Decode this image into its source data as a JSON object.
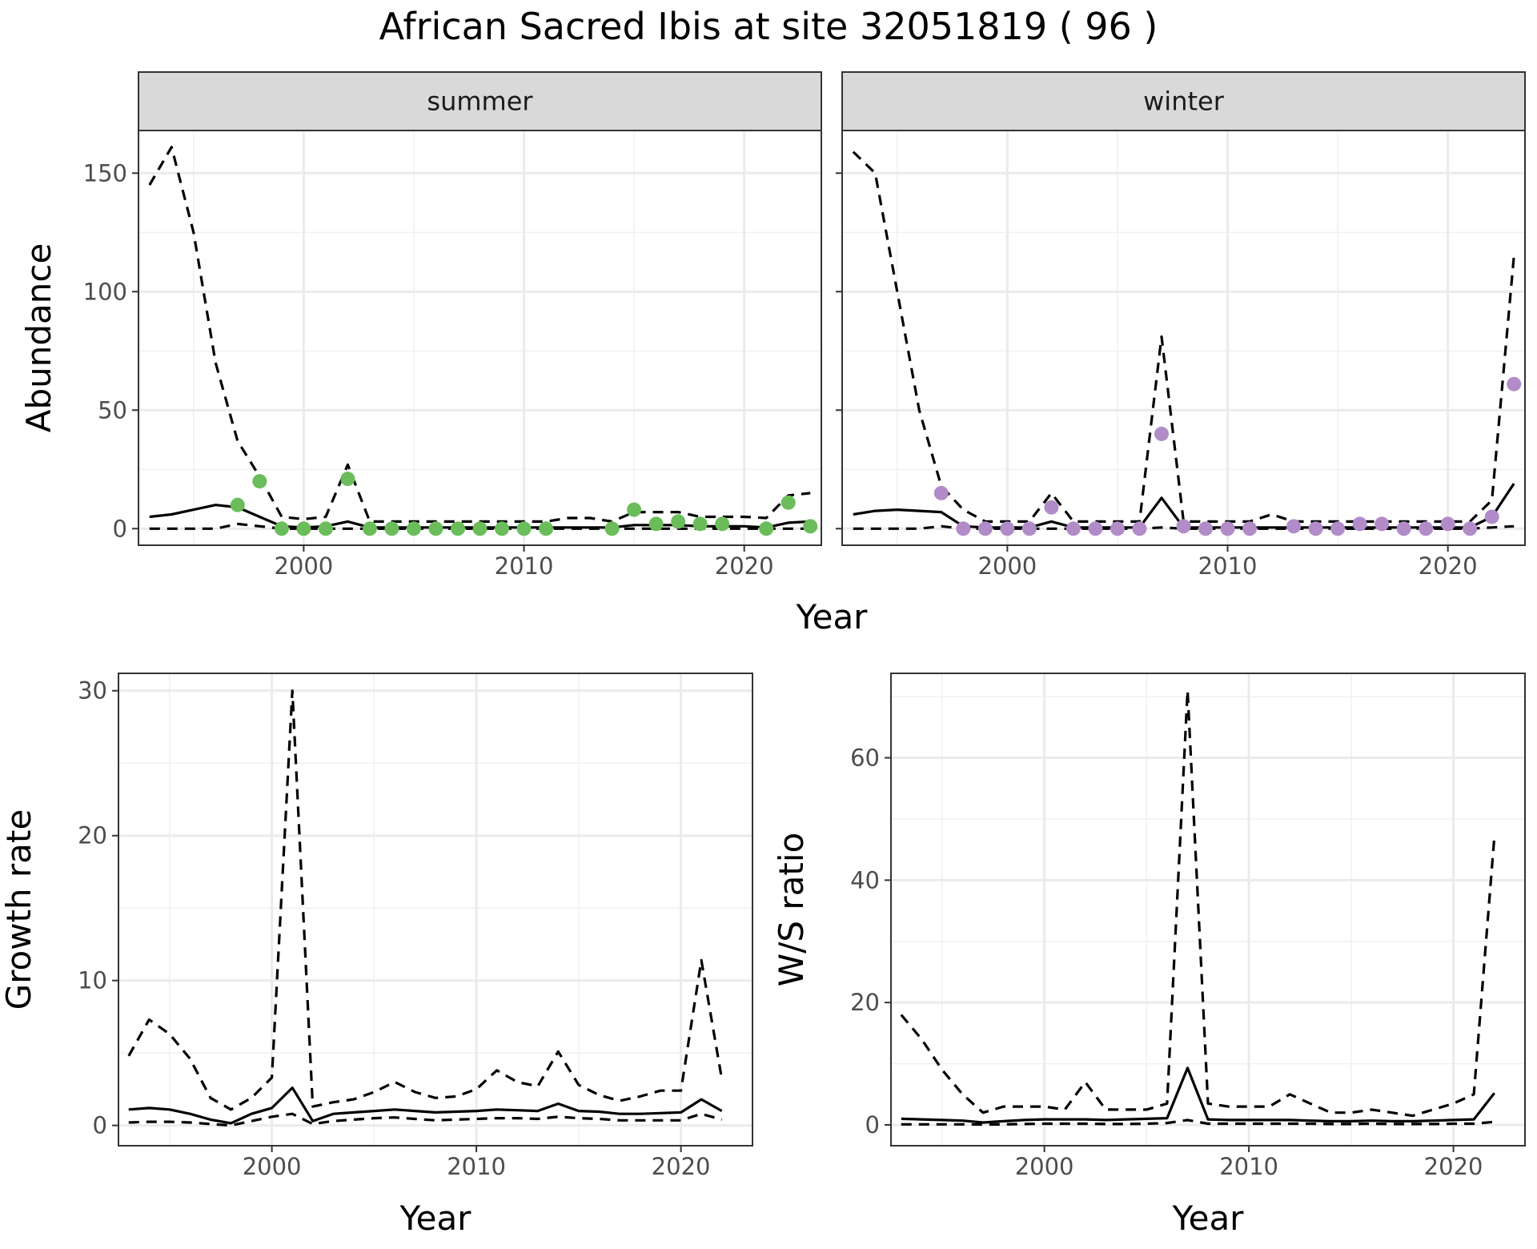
{
  "title": "African Sacred Ibis at site 32051819 ( 96 )",
  "chart_data": [
    {
      "id": "abundance_summer",
      "type": "line",
      "facet": "summer",
      "ylabel": "Abundance",
      "xlabel": "Year",
      "xlim": [
        1992.5,
        2023.5
      ],
      "ylim": [
        -7,
        168
      ],
      "xticks": [
        2000,
        2010,
        2020
      ],
      "yticks": [
        0,
        50,
        100,
        150
      ],
      "point_color": "#6ABD5A",
      "series": [
        {
          "role": "mean",
          "style": "solid",
          "x": [
            1993,
            1994,
            1995,
            1996,
            1997,
            1998,
            1999,
            2000,
            2001,
            2002,
            2003,
            2004,
            2005,
            2006,
            2007,
            2008,
            2009,
            2010,
            2011,
            2012,
            2013,
            2014,
            2015,
            2016,
            2017,
            2018,
            2019,
            2020,
            2021,
            2022,
            2023
          ],
          "values": [
            5,
            6,
            8,
            10,
            9,
            5,
            1,
            0.5,
            1,
            3,
            0.5,
            0.5,
            0.5,
            0.5,
            0.5,
            0.5,
            0.5,
            0.5,
            0.5,
            0.5,
            0.5,
            0.5,
            1.5,
            1.5,
            1.5,
            1,
            1,
            1,
            0.5,
            2.5,
            3
          ]
        },
        {
          "role": "upper",
          "style": "dashed",
          "x": [
            1993,
            1994,
            1995,
            1996,
            1997,
            1998,
            1999,
            2000,
            2001,
            2002,
            2003,
            2004,
            2005,
            2006,
            2007,
            2008,
            2009,
            2010,
            2011,
            2012,
            2013,
            2014,
            2015,
            2016,
            2017,
            2018,
            2019,
            2020,
            2021,
            2022,
            2023
          ],
          "values": [
            145,
            161,
            125,
            70,
            37,
            22,
            5,
            4,
            5,
            27,
            3,
            3,
            3,
            3,
            3,
            3,
            3,
            3,
            3,
            4.5,
            4.5,
            3,
            7,
            7,
            7,
            5,
            5,
            5,
            4.5,
            14,
            15
          ]
        },
        {
          "role": "lower",
          "style": "dashed",
          "x": [
            1993,
            1994,
            1995,
            1996,
            1997,
            1998,
            1999,
            2000,
            2001,
            2002,
            2003,
            2004,
            2005,
            2006,
            2007,
            2008,
            2009,
            2010,
            2011,
            2012,
            2013,
            2014,
            2015,
            2016,
            2017,
            2018,
            2019,
            2020,
            2021,
            2022,
            2023
          ],
          "values": [
            0,
            0,
            0,
            0,
            2,
            1,
            0,
            0,
            0,
            0,
            0,
            0,
            0,
            0,
            0,
            0,
            0,
            0,
            0,
            0,
            0,
            0,
            0,
            0,
            0,
            0,
            0,
            0,
            0,
            0,
            0
          ]
        },
        {
          "role": "observed",
          "style": "points",
          "x": [
            1997,
            1998,
            1999,
            2000,
            2001,
            2002,
            2003,
            2004,
            2005,
            2006,
            2007,
            2008,
            2009,
            2010,
            2011,
            2014,
            2015,
            2016,
            2017,
            2018,
            2019,
            2021,
            2022,
            2023
          ],
          "values": [
            10,
            20,
            0,
            0,
            0,
            21,
            0,
            0,
            0,
            0,
            0,
            0,
            0,
            0,
            0,
            0,
            8,
            2,
            3,
            2,
            2,
            0,
            11,
            1
          ]
        }
      ]
    },
    {
      "id": "abundance_winter",
      "type": "line",
      "facet": "winter",
      "xlabel": "Year",
      "xlim": [
        1992.5,
        2023.5
      ],
      "ylim": [
        -7,
        168
      ],
      "xticks": [
        2000,
        2010,
        2020
      ],
      "yticks": [
        0,
        50,
        100,
        150
      ],
      "point_color": "#B18CC8",
      "series": [
        {
          "role": "mean",
          "style": "solid",
          "x": [
            1993,
            1994,
            1995,
            1996,
            1997,
            1998,
            1999,
            2000,
            2001,
            2002,
            2003,
            2004,
            2005,
            2006,
            2007,
            2008,
            2009,
            2010,
            2011,
            2012,
            2013,
            2014,
            2015,
            2016,
            2017,
            2018,
            2019,
            2020,
            2021,
            2022,
            2023
          ],
          "values": [
            6,
            7.5,
            8,
            7.5,
            7,
            1,
            0.5,
            0.5,
            0.5,
            3,
            0.5,
            0.5,
            0.5,
            0.5,
            13,
            0.5,
            0.5,
            0.5,
            0.5,
            0.5,
            0.5,
            0.5,
            0.5,
            0.5,
            0.5,
            0.5,
            0.5,
            0.5,
            0.5,
            5,
            19
          ]
        },
        {
          "role": "upper",
          "style": "dashed",
          "x": [
            1993,
            1994,
            1995,
            1996,
            1997,
            1998,
            1999,
            2000,
            2001,
            2002,
            2003,
            2004,
            2005,
            2006,
            2007,
            2008,
            2009,
            2010,
            2011,
            2012,
            2013,
            2014,
            2015,
            2016,
            2017,
            2018,
            2019,
            2020,
            2021,
            2022,
            2023
          ],
          "values": [
            159,
            150,
            100,
            50,
            18,
            8,
            3,
            3,
            3,
            15,
            3,
            3,
            3,
            3,
            81,
            3,
            3,
            3,
            3,
            6,
            3,
            3,
            3,
            3,
            3,
            3,
            3,
            3,
            3,
            12,
            115
          ]
        },
        {
          "role": "lower",
          "style": "dashed",
          "x": [
            1993,
            1994,
            1995,
            1996,
            1997,
            1998,
            1999,
            2000,
            2001,
            2002,
            2003,
            2004,
            2005,
            2006,
            2007,
            2008,
            2009,
            2010,
            2011,
            2012,
            2013,
            2014,
            2015,
            2016,
            2017,
            2018,
            2019,
            2020,
            2021,
            2022,
            2023
          ],
          "values": [
            0,
            0,
            0,
            0,
            1,
            0,
            0,
            0,
            0,
            0,
            0,
            0,
            0,
            0,
            0.5,
            0,
            0,
            0,
            0,
            0,
            0,
            0,
            0,
            0,
            0,
            0,
            0,
            0,
            0,
            0.5,
            1
          ]
        },
        {
          "role": "observed",
          "style": "points",
          "x": [
            1997,
            1998,
            1999,
            2000,
            2001,
            2002,
            2003,
            2004,
            2005,
            2006,
            2007,
            2008,
            2009,
            2010,
            2011,
            2013,
            2014,
            2015,
            2016,
            2017,
            2018,
            2019,
            2020,
            2021,
            2022,
            2023
          ],
          "values": [
            15,
            0,
            0,
            0,
            0,
            9,
            0,
            0,
            0,
            0,
            40,
            1,
            0,
            0,
            0,
            1,
            0,
            0,
            2,
            2,
            0,
            0,
            2,
            0,
            5,
            61
          ]
        }
      ]
    },
    {
      "id": "growth_rate",
      "type": "line",
      "xlabel": "Year",
      "ylabel": "Growth rate",
      "xlim": [
        1992.5,
        2023.5
      ],
      "ylim": [
        -1.4,
        31.2
      ],
      "xticks": [
        2000,
        2010,
        2020
      ],
      "yticks": [
        0,
        10,
        20,
        30
      ],
      "series": [
        {
          "role": "mean",
          "style": "solid",
          "x": [
            1993,
            1994,
            1995,
            1996,
            1997,
            1998,
            1999,
            2000,
            2001,
            2002,
            2003,
            2004,
            2005,
            2006,
            2007,
            2008,
            2009,
            2010,
            2011,
            2012,
            2013,
            2014,
            2015,
            2016,
            2017,
            2018,
            2019,
            2020,
            2021,
            2022
          ],
          "values": [
            1.1,
            1.2,
            1.1,
            0.8,
            0.4,
            0.15,
            0.8,
            1.2,
            2.6,
            0.3,
            0.8,
            0.9,
            1.0,
            1.1,
            1.0,
            0.9,
            0.95,
            1.0,
            1.1,
            1.05,
            1.0,
            1.5,
            1.0,
            0.95,
            0.8,
            0.8,
            0.85,
            0.9,
            1.8,
            1.0
          ]
        },
        {
          "role": "upper",
          "style": "dashed",
          "x": [
            1993,
            1994,
            1995,
            1996,
            1997,
            1998,
            1999,
            2000,
            2001,
            2002,
            2003,
            2004,
            2005,
            2006,
            2007,
            2008,
            2009,
            2010,
            2011,
            2012,
            2013,
            2014,
            2015,
            2016,
            2017,
            2018,
            2019,
            2020,
            2021,
            2022
          ],
          "values": [
            4.8,
            7.3,
            6.3,
            4.6,
            1.9,
            1.1,
            1.9,
            3.3,
            30,
            1.3,
            1.6,
            1.8,
            2.3,
            3.0,
            2.3,
            1.9,
            2.0,
            2.5,
            3.8,
            3.0,
            2.7,
            5.1,
            2.8,
            2.1,
            1.7,
            2.0,
            2.4,
            2.4,
            11.4,
            3.2
          ]
        },
        {
          "role": "lower",
          "style": "dashed",
          "x": [
            1993,
            1994,
            1995,
            1996,
            1997,
            1998,
            1999,
            2000,
            2001,
            2002,
            2003,
            2004,
            2005,
            2006,
            2007,
            2008,
            2009,
            2010,
            2011,
            2012,
            2013,
            2014,
            2015,
            2016,
            2017,
            2018,
            2019,
            2020,
            2021,
            2022
          ],
          "values": [
            0.2,
            0.25,
            0.25,
            0.2,
            0.1,
            0.0,
            0.3,
            0.6,
            0.8,
            0.1,
            0.3,
            0.4,
            0.5,
            0.55,
            0.45,
            0.35,
            0.4,
            0.45,
            0.5,
            0.5,
            0.45,
            0.6,
            0.5,
            0.45,
            0.35,
            0.35,
            0.35,
            0.35,
            0.8,
            0.4
          ]
        }
      ]
    },
    {
      "id": "ws_ratio",
      "type": "line",
      "xlabel": "Year",
      "ylabel": "W/S ratio",
      "xlim": [
        1992.5,
        2023.5
      ],
      "ylim": [
        -3.4,
        73.8
      ],
      "xticks": [
        2000,
        2010,
        2020
      ],
      "yticks": [
        0,
        20,
        40,
        60
      ],
      "series": [
        {
          "role": "mean",
          "style": "solid",
          "x": [
            1993,
            1994,
            1995,
            1996,
            1997,
            1998,
            1999,
            2000,
            2001,
            2002,
            2003,
            2004,
            2005,
            2006,
            2007,
            2008,
            2009,
            2010,
            2011,
            2012,
            2013,
            2014,
            2015,
            2016,
            2017,
            2018,
            2019,
            2020,
            2021,
            2022
          ],
          "values": [
            1.0,
            0.9,
            0.8,
            0.7,
            0.4,
            0.6,
            0.8,
            0.9,
            0.9,
            0.9,
            0.8,
            0.9,
            1.0,
            1.1,
            9.3,
            0.9,
            0.8,
            0.8,
            0.8,
            0.8,
            0.7,
            0.6,
            0.6,
            0.7,
            0.6,
            0.6,
            0.7,
            0.8,
            0.9,
            5.2
          ]
        },
        {
          "role": "upper",
          "style": "dashed",
          "x": [
            1993,
            1994,
            1995,
            1996,
            1997,
            1998,
            1999,
            2000,
            2001,
            2002,
            2003,
            2004,
            2005,
            2006,
            2007,
            2008,
            2009,
            2010,
            2011,
            2012,
            2013,
            2014,
            2015,
            2016,
            2017,
            2018,
            2019,
            2020,
            2021,
            2022
          ],
          "values": [
            18,
            14,
            9,
            5,
            2,
            3,
            3,
            3,
            2.5,
            7,
            2.5,
            2.5,
            2.5,
            3.5,
            71,
            3.5,
            3,
            3,
            3,
            5,
            3.5,
            2,
            2,
            2.5,
            2,
            1.5,
            2.5,
            3.5,
            5,
            47
          ]
        },
        {
          "role": "lower",
          "style": "dashed",
          "x": [
            1993,
            1994,
            1995,
            1996,
            1997,
            1998,
            1999,
            2000,
            2001,
            2002,
            2003,
            2004,
            2005,
            2006,
            2007,
            2008,
            2009,
            2010,
            2011,
            2012,
            2013,
            2014,
            2015,
            2016,
            2017,
            2018,
            2019,
            2020,
            2021,
            2022
          ],
          "values": [
            0.1,
            0.1,
            0.1,
            0.1,
            0.05,
            0.1,
            0.15,
            0.2,
            0.2,
            0.2,
            0.15,
            0.15,
            0.2,
            0.3,
            0.8,
            0.2,
            0.2,
            0.2,
            0.2,
            0.2,
            0.2,
            0.15,
            0.15,
            0.2,
            0.15,
            0.15,
            0.15,
            0.2,
            0.2,
            0.5
          ]
        }
      ]
    }
  ]
}
